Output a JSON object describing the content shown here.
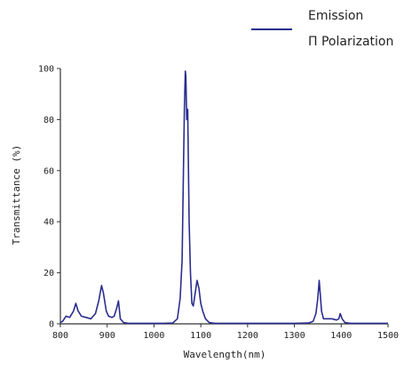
{
  "chart_data": {
    "type": "line",
    "title": "",
    "xlabel": "Wavelength(nm)",
    "ylabel": "Transmittance (%)",
    "xlim": [
      800,
      1500
    ],
    "ylim": [
      0,
      100
    ],
    "xticks": [
      800,
      900,
      1000,
      1100,
      1200,
      1300,
      1400,
      1500
    ],
    "yticks": [
      0,
      20,
      40,
      60,
      80,
      100
    ],
    "grid": false,
    "legend_position": "top-right",
    "legend": [
      "Emission",
      "Π Polarization"
    ],
    "series_color": "#2a2d8f",
    "series": [
      {
        "x": [
          800,
          805,
          812,
          820,
          828,
          833,
          838,
          845,
          855,
          865,
          875,
          882,
          888,
          892,
          898,
          903,
          910,
          915,
          920,
          924,
          928,
          935,
          945,
          960,
          980,
          1000,
          1020,
          1040,
          1050,
          1056,
          1060,
          1063,
          1065,
          1067,
          1068,
          1070,
          1072,
          1073,
          1075,
          1078,
          1081,
          1084,
          1088,
          1092,
          1096,
          1100,
          1104,
          1110,
          1118,
          1130,
          1160,
          1200,
          1250,
          1300,
          1330,
          1340,
          1346,
          1350,
          1353,
          1355,
          1358,
          1362,
          1370,
          1380,
          1390,
          1395,
          1398,
          1402,
          1408,
          1420,
          1450,
          1500
        ],
        "y": [
          0.5,
          1,
          3,
          2.5,
          5,
          8,
          5,
          3,
          2.5,
          2,
          4,
          9,
          15,
          12,
          5,
          3,
          2.5,
          3,
          6,
          9,
          2,
          0.5,
          0.2,
          0.2,
          0.2,
          0.2,
          0.2,
          0.3,
          2,
          10,
          25,
          60,
          85,
          99,
          97,
          80,
          84,
          70,
          40,
          20,
          8,
          7,
          12,
          17,
          14,
          8,
          5,
          2,
          0.5,
          0.2,
          0.2,
          0.2,
          0.2,
          0.2,
          0.3,
          1,
          4,
          10,
          17,
          12,
          5,
          2,
          2,
          2,
          1.5,
          2,
          4,
          2,
          0.5,
          0.2,
          0.2,
          0.2
        ]
      }
    ]
  }
}
